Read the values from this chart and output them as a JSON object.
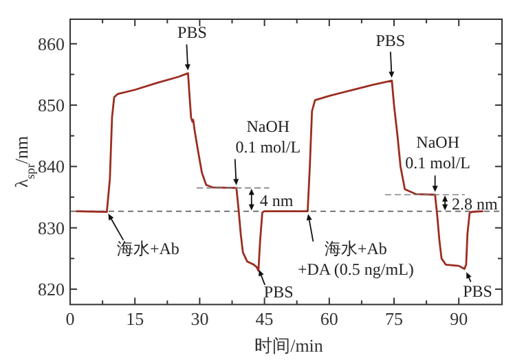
{
  "chart_data": {
    "type": "line",
    "xlabel": "时间/min",
    "ylabel": "λ$_{spr}$/nm",
    "xlim": [
      0,
      100
    ],
    "xticks": [
      0,
      15,
      30,
      45,
      60,
      75,
      90
    ],
    "ylim": [
      817.5,
      864
    ],
    "yticks": [
      820,
      830,
      840,
      850,
      860
    ],
    "grid": false,
    "series": [
      {
        "color": "#9b2d20",
        "x": [
          1.5,
          8.5,
          9.2,
          9.7,
          10.2,
          11,
          15,
          20,
          25,
          27.3,
          27.6,
          28,
          28.3,
          28.5,
          28.8,
          29.5,
          30.5,
          31.5,
          33,
          38.5,
          39,
          39.5,
          40,
          41,
          42.5,
          43.2,
          43.6,
          44,
          44.5,
          45,
          55,
          55.5,
          56,
          56.7,
          60,
          65,
          70,
          74.5,
          75,
          75.8,
          76.5,
          77.5,
          80,
          84.5,
          85,
          85.5,
          86,
          87,
          90,
          91.3,
          91.7,
          92,
          92.5,
          93,
          95.5
        ],
        "values": [
          832.7,
          832.6,
          838,
          848,
          851.3,
          851.8,
          852.5,
          853.6,
          854.6,
          855.2,
          852,
          848,
          847.3,
          847.6,
          846,
          843,
          839,
          837,
          836.6,
          836.5,
          833,
          829,
          826,
          824.5,
          824,
          823.6,
          823,
          828,
          832.5,
          832.7,
          832.7,
          840,
          849,
          850.8,
          851.5,
          852.4,
          853.3,
          854,
          850,
          845,
          840,
          836.3,
          835.5,
          835.4,
          832,
          828,
          825,
          824,
          823.8,
          823.3,
          824,
          829,
          832.4,
          832.6,
          832.7
        ]
      },
      {
        "color": "#808080",
        "type": "line",
        "line_style": "dashed",
        "x": [
          29.4,
          46
        ],
        "values": [
          836.5,
          836.5
        ]
      },
      {
        "color": "#808080",
        "type": "line",
        "line_style": "dashed",
        "x": [
          73,
          91.3
        ],
        "values": [
          835.4,
          835.4
        ]
      }
    ],
    "ref_lines": [
      {
        "axis": "y",
        "value": 832.7,
        "color": "#606060",
        "line_style": "dashed"
      }
    ],
    "annotations": [
      {
        "text": "PBS",
        "x": 27.3,
        "y": 855.2
      },
      {
        "text": "NaOH\n0.1 mol/L",
        "x": 38.5,
        "y": 836.5
      },
      {
        "text": "海水+Ab",
        "x": 8.5,
        "y": 832.7
      },
      {
        "text": "4 nm",
        "x": 42,
        "y": 836.5
      },
      {
        "text": "PBS",
        "x": 43.5,
        "y": 823.6
      },
      {
        "text": "海水+Ab\n+DA (0.5 ng/mL)",
        "x": 55,
        "y": 832.7
      },
      {
        "text": "PBS",
        "x": 74.5,
        "y": 854
      },
      {
        "text": "NaOH\n0.1 mol/L",
        "x": 84.5,
        "y": 835.4
      },
      {
        "text": "2.8 nm",
        "x": 86.8,
        "y": 835.4
      },
      {
        "text": "PBS",
        "x": 91.5,
        "y": 823.2
      }
    ]
  }
}
